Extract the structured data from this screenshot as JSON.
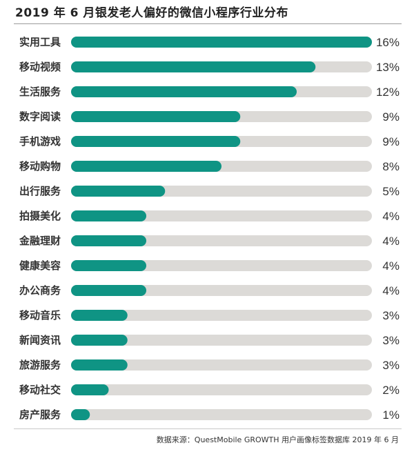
{
  "title": "2019 年 6 月银发老人偏好的微信小程序行业分布",
  "source": "数据来源：QuestMobile GROWTH 用户画像标签数据库 2019 年 6 月",
  "colors": {
    "bar": "#0f9484",
    "track": "#dcdad7",
    "text": "#333333"
  },
  "chart_data": {
    "type": "bar",
    "orientation": "horizontal",
    "categories": [
      "实用工具",
      "移动视频",
      "生活服务",
      "数字阅读",
      "手机游戏",
      "移动购物",
      "出行服务",
      "拍摄美化",
      "金融理财",
      "健康美容",
      "办公商务",
      "移动音乐",
      "新闻资讯",
      "旅游服务",
      "移动社交",
      "房产服务"
    ],
    "values": [
      16,
      13,
      12,
      9,
      9,
      8,
      5,
      4,
      4,
      4,
      4,
      3,
      3,
      3,
      2,
      1
    ],
    "value_labels": [
      "16%",
      "13%",
      "12%",
      "9%",
      "9%",
      "8%",
      "5%",
      "4%",
      "4%",
      "4%",
      "4%",
      "3%",
      "3%",
      "3%",
      "2%",
      "1%"
    ],
    "value_unit": "%",
    "xlim": [
      0,
      16
    ],
    "grid": false,
    "legend": "none"
  }
}
